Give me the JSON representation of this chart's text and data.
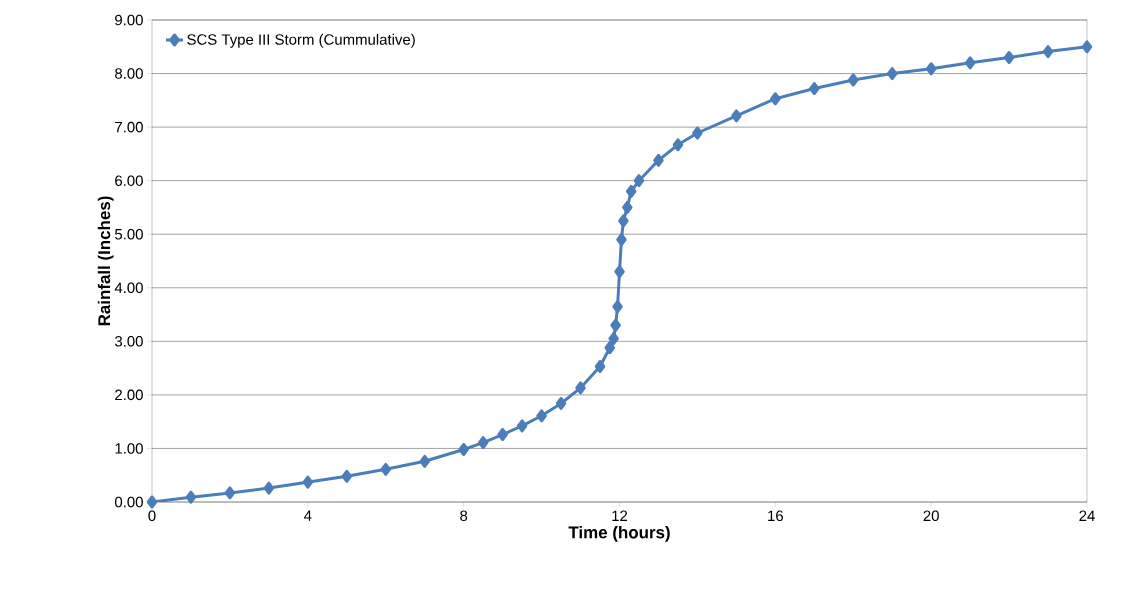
{
  "chart_data": {
    "type": "line",
    "xlabel": "Time (hours)",
    "ylabel": "Rainfall (Inches)",
    "series": [
      {
        "name": "SCS Type III Storm (Cummulative)",
        "color": "#4a7ebb",
        "x": [
          0,
          1,
          2,
          3,
          4,
          5,
          6,
          7,
          8,
          8.5,
          9,
          9.5,
          10,
          10.5,
          11,
          11.5,
          11.75,
          11.85,
          11.9,
          11.95,
          12.0,
          12.05,
          12.1,
          12.2,
          12.3,
          12.5,
          13,
          13.5,
          14,
          15,
          16,
          17,
          18,
          19,
          20,
          21,
          22,
          23,
          24
        ],
        "values": [
          0,
          0.09,
          0.17,
          0.26,
          0.37,
          0.48,
          0.61,
          0.76,
          0.98,
          1.11,
          1.26,
          1.42,
          1.61,
          1.84,
          2.13,
          2.53,
          2.88,
          3.05,
          3.3,
          3.65,
          4.3,
          4.9,
          5.25,
          5.5,
          5.8,
          6.0,
          6.38,
          6.67,
          6.89,
          7.21,
          7.53,
          7.72,
          7.88,
          8.0,
          8.09,
          8.2,
          8.3,
          8.41,
          8.5
        ]
      }
    ],
    "xlim": [
      0,
      24
    ],
    "xticks": [
      0,
      4,
      8,
      12,
      16,
      20,
      24
    ],
    "ylim": [
      0,
      9
    ],
    "yticks": [
      {
        "value": 0,
        "label": "0.00"
      },
      {
        "value": 1,
        "label": "1.00"
      },
      {
        "value": 2,
        "label": "2.00"
      },
      {
        "value": 3,
        "label": "3.00"
      },
      {
        "value": 4,
        "label": "4.00"
      },
      {
        "value": 5,
        "label": "5.00"
      },
      {
        "value": 6,
        "label": "6.00"
      },
      {
        "value": 7,
        "label": "7.00"
      },
      {
        "value": 8,
        "label": "8.00"
      },
      {
        "value": 9,
        "label": "9.00"
      }
    ],
    "grid": "y",
    "legend": "top left",
    "marker": "diamond",
    "line_style": "solid"
  }
}
